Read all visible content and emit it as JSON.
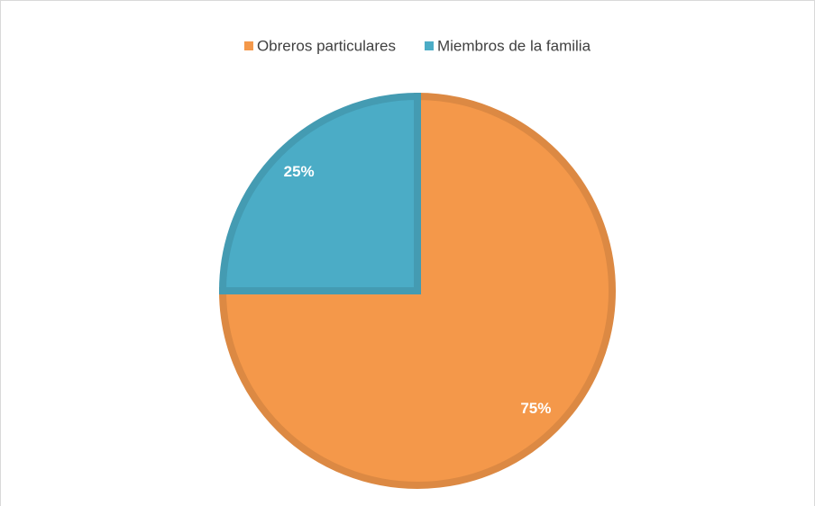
{
  "chart_data": {
    "type": "pie",
    "categories": [
      "Obreros particulares",
      "Miembros de la familia"
    ],
    "values": [
      75,
      25
    ],
    "value_labels": [
      "75%",
      "25%"
    ],
    "colors": [
      "#f4984a",
      "#4bacc6"
    ],
    "legend": "top"
  }
}
